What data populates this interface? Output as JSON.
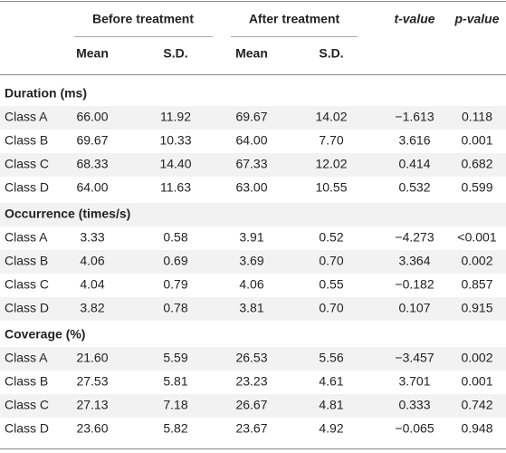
{
  "table": {
    "header": {
      "groups": [
        "Before treatment",
        "After treatment"
      ],
      "t_value": "t-value",
      "p_value": "p-value",
      "subheaders": [
        "Mean",
        "S.D.",
        "Mean",
        "S.D."
      ]
    },
    "sections": [
      {
        "title": "Duration (ms)",
        "rows": [
          [
            "Class A",
            "66.00",
            "11.92",
            "69.67",
            "14.02",
            "−1.613",
            "0.118"
          ],
          [
            "Class B",
            "69.67",
            "10.33",
            "64.00",
            "7.70",
            "3.616",
            "0.001"
          ],
          [
            "Class C",
            "68.33",
            "14.40",
            "67.33",
            "12.02",
            "0.414",
            "0.682"
          ],
          [
            "Class D",
            "64.00",
            "11.63",
            "63.00",
            "10.55",
            "0.532",
            "0.599"
          ]
        ]
      },
      {
        "title": "Occurrence (times/s)",
        "rows": [
          [
            "Class A",
            "3.33",
            "0.58",
            "3.91",
            "0.52",
            "−4.273",
            "<0.001"
          ],
          [
            "Class B",
            "4.06",
            "0.69",
            "3.69",
            "0.70",
            "3.364",
            "0.002"
          ],
          [
            "Class C",
            "4.04",
            "0.79",
            "4.06",
            "0.55",
            "−0.182",
            "0.857"
          ],
          [
            "Class D",
            "3.82",
            "0.78",
            "3.81",
            "0.70",
            "0.107",
            "0.915"
          ]
        ]
      },
      {
        "title": "Coverage (%)",
        "rows": [
          [
            "Class A",
            "21.60",
            "5.59",
            "26.53",
            "5.56",
            "−3.457",
            "0.002"
          ],
          [
            "Class B",
            "27.53",
            "5.81",
            "23.23",
            "4.61",
            "3.701",
            "0.001"
          ],
          [
            "Class C",
            "27.13",
            "7.18",
            "26.67",
            "4.81",
            "0.333",
            "0.742"
          ],
          [
            "Class D",
            "23.60",
            "5.82",
            "23.67",
            "4.92",
            "−0.065",
            "0.948"
          ]
        ]
      }
    ]
  }
}
